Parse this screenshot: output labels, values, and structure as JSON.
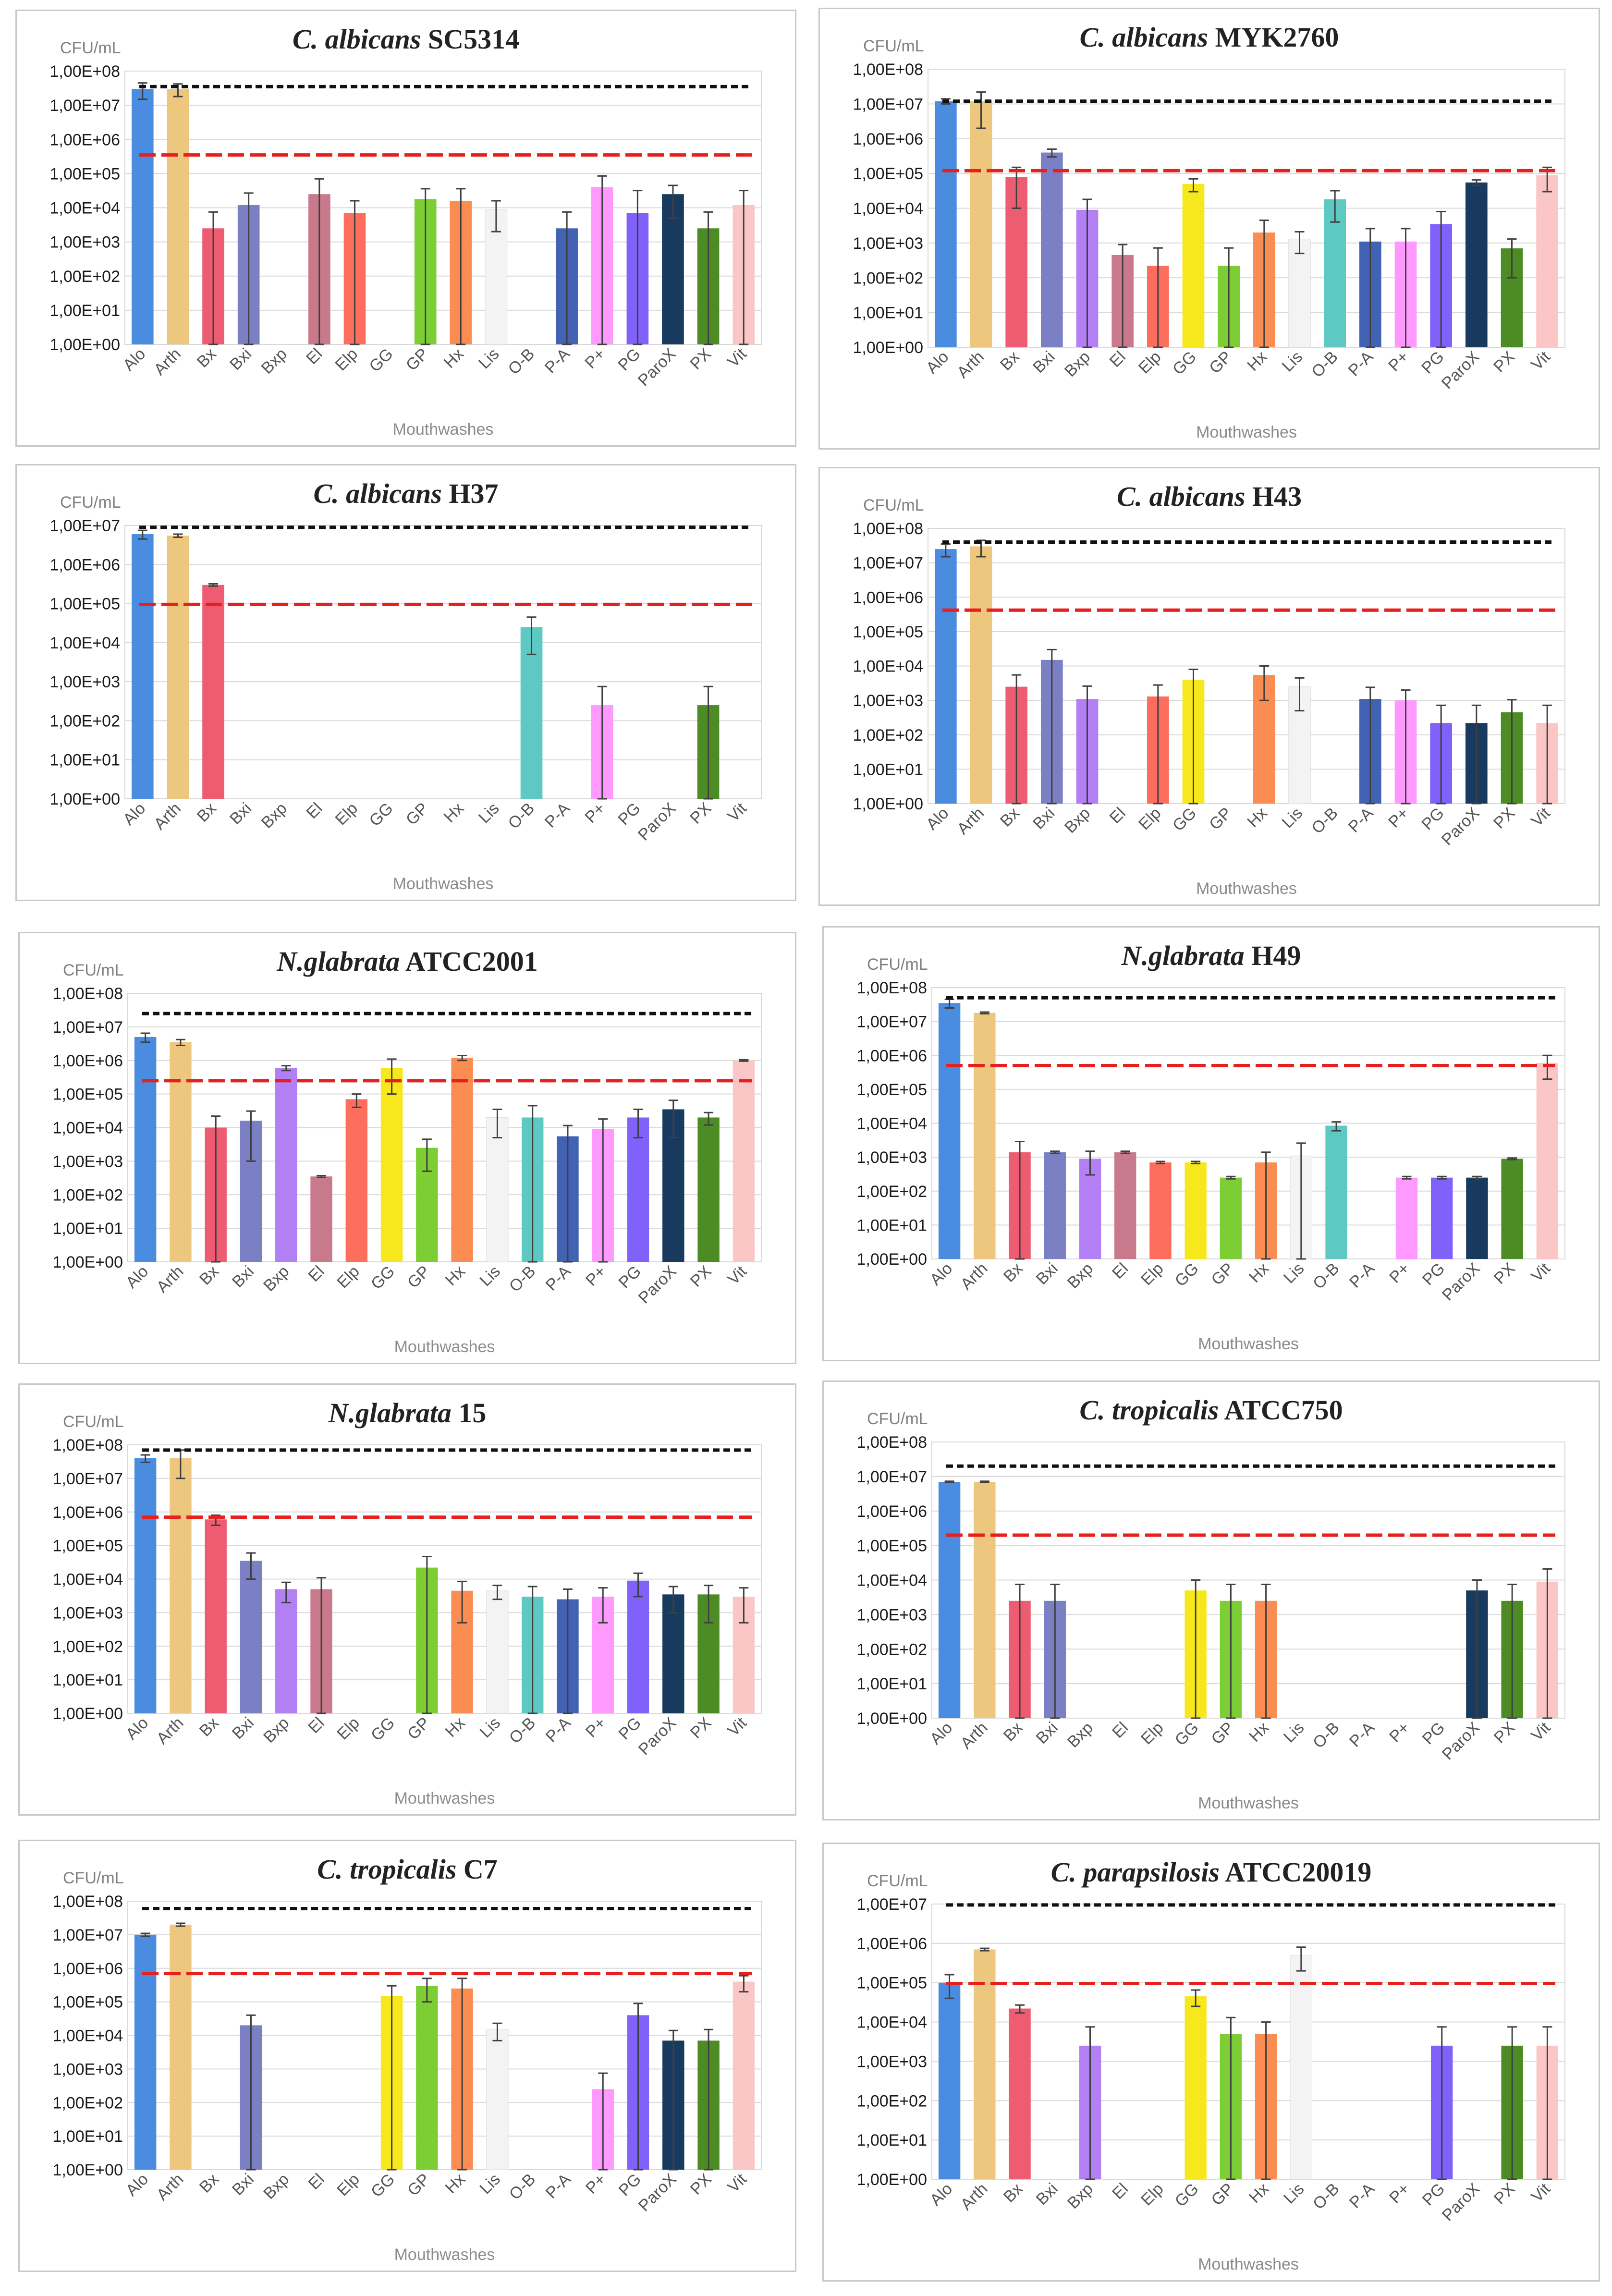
{
  "colors": [
    "#4a8de0",
    "#eec77e",
    "#ee5c72",
    "#7b7fc4",
    "#b27ff5",
    "#c87a8c",
    "#fd6e5c",
    "#f7e71d",
    "#7dce34",
    "#fc8d52",
    "#f3f3f3",
    "#5ec8c3",
    "#4263b4",
    "#fe99ff",
    "#8062fb",
    "#173a5e",
    "#4d8c24",
    "#fbc6c6"
  ],
  "chart_data": [
    {
      "title_italic": "C. albicans",
      "title_rest": "SC5314",
      "type": "bar",
      "ylabel": "CFU/mL",
      "xlabel": "Mouthwashes",
      "ylim": [
        1,
        100000000
      ],
      "yticks": [
        "1,00E+00",
        "1,00E+01",
        "1,00E+02",
        "1,00E+03",
        "1,00E+04",
        "1,00E+05",
        "1,00E+06",
        "1,00E+07",
        "1,00E+08"
      ],
      "categories": [
        "Alo",
        "Arth",
        "Bx",
        "Bxi",
        "Bxp",
        "El",
        "Elp",
        "GG",
        "GP",
        "Hx",
        "Lis",
        "O-B",
        "P-A",
        "P+",
        "PG",
        "ParoX",
        "PX",
        "Vit"
      ],
      "values": [
        30000000,
        30000000,
        2500,
        12000,
        null,
        25000,
        7000,
        null,
        18000,
        16000,
        9000,
        null,
        2500,
        40000,
        7000,
        25000,
        2500,
        12000
      ],
      "errors": [
        15000000,
        12000000,
        5000,
        15000,
        null,
        45000,
        9000,
        null,
        18000,
        20000,
        7000,
        null,
        5000,
        45000,
        25000,
        20000,
        5000,
        20000
      ],
      "ref_black": 35000000,
      "ref_red": 350000
    },
    {
      "title_italic": "C. albicans",
      "title_rest": "MYK2760",
      "type": "bar",
      "ylabel": "CFU/mL",
      "xlabel": "Mouthwashes",
      "ylim": [
        1,
        100000000
      ],
      "yticks": [
        "1,00E+00",
        "1,00E+01",
        "1,00E+02",
        "1,00E+03",
        "1,00E+04",
        "1,00E+05",
        "1,00E+06",
        "1,00E+07",
        "1,00E+08"
      ],
      "categories": [
        "Alo",
        "Arth",
        "Bx",
        "Bxi",
        "Bxp",
        "El",
        "Elp",
        "GG",
        "GP",
        "Hx",
        "Lis",
        "O-B",
        "P-A",
        "P+",
        "PG",
        "ParoX",
        "PX",
        "Vit"
      ],
      "values": [
        12000000,
        12000000,
        80000,
        400000,
        9000,
        450,
        220,
        50000,
        220,
        2000,
        1300,
        18000,
        1100,
        1100,
        3500,
        55000,
        700,
        90000
      ],
      "errors": [
        2000000,
        10000000,
        70000,
        100000,
        9000,
        450,
        500,
        20000,
        500,
        2500,
        800,
        14000,
        1500,
        1500,
        4500,
        10000,
        600,
        60000
      ],
      "ref_black": 12000000,
      "ref_red": 120000
    },
    {
      "title_italic": "C. albicans",
      "title_rest": "H37",
      "type": "bar",
      "ylabel": "CFU/mL",
      "xlabel": "Mouthwashes",
      "ylim": [
        1,
        10000000
      ],
      "yticks": [
        "1,00E+00",
        "1,00E+01",
        "1,00E+02",
        "1,00E+03",
        "1,00E+04",
        "1,00E+05",
        "1,00E+06",
        "1,00E+07"
      ],
      "categories": [
        "Alo",
        "Arth",
        "Bx",
        "Bxi",
        "Bxp",
        "El",
        "Elp",
        "GG",
        "GP",
        "Hx",
        "Lis",
        "O-B",
        "P-A",
        "P+",
        "PG",
        "ParoX",
        "PX",
        "Vit"
      ],
      "values": [
        6000000,
        5500000,
        300000,
        null,
        null,
        null,
        null,
        null,
        null,
        null,
        null,
        25000,
        null,
        250,
        null,
        null,
        250,
        null
      ],
      "errors": [
        1500000,
        500000,
        20000,
        null,
        null,
        null,
        null,
        null,
        null,
        null,
        null,
        20000,
        null,
        500,
        null,
        null,
        500,
        null
      ],
      "ref_black": 9000000,
      "ref_red": 95000
    },
    {
      "title_italic": "C. albicans",
      "title_rest": "H43",
      "type": "bar",
      "ylabel": "CFU/mL",
      "xlabel": "Mouthwashes",
      "ylim": [
        1,
        100000000
      ],
      "yticks": [
        "1,00E+00",
        "1,00E+01",
        "1,00E+02",
        "1,00E+03",
        "1,00E+04",
        "1,00E+05",
        "1,00E+06",
        "1,00E+07",
        "1,00E+08"
      ],
      "categories": [
        "Alo",
        "Arth",
        "Bx",
        "Bxi",
        "Bxp",
        "El",
        "Elp",
        "GG",
        "GP",
        "Hx",
        "Lis",
        "O-B",
        "P-A",
        "P+",
        "PG",
        "ParoX",
        "PX",
        "Vit"
      ],
      "values": [
        25000000,
        30000000,
        2500,
        15000,
        1100,
        null,
        1300,
        4000,
        null,
        5500,
        2500,
        null,
        1100,
        1000,
        220,
        220,
        450,
        220
      ],
      "errors": [
        10000000,
        15000000,
        3000,
        15000,
        1500,
        null,
        1500,
        4000,
        null,
        4500,
        2000,
        null,
        1300,
        1000,
        500,
        500,
        600,
        500
      ],
      "ref_black": 40000000,
      "ref_red": 420000
    },
    {
      "title_italic": "N.glabrata",
      "title_rest": "ATCC2001",
      "type": "bar",
      "ylabel": "CFU/mL",
      "xlabel": "Mouthwashes",
      "ylim": [
        1,
        100000000
      ],
      "yticks": [
        "1,00E+00",
        "1,00E+01",
        "1,00E+02",
        "1,00E+03",
        "1,00E+04",
        "1,00E+05",
        "1,00E+06",
        "1,00E+07",
        "1,00E+08"
      ],
      "categories": [
        "Alo",
        "Arth",
        "Bx",
        "Bxi",
        "Bxp",
        "El",
        "Elp",
        "GG",
        "GP",
        "Hx",
        "Lis",
        "O-B",
        "P-A",
        "P+",
        "PG",
        "ParoX",
        "PX",
        "Vit"
      ],
      "values": [
        5000000,
        3500000,
        10000,
        16000,
        600000,
        350,
        70000,
        600000,
        2500,
        1200000,
        20000,
        20000,
        5500,
        9000,
        20000,
        35000,
        20000,
        1000000
      ],
      "errors": [
        1500000,
        700000,
        12000,
        15000,
        100000,
        20,
        30000,
        500000,
        2000,
        200000,
        15000,
        25000,
        6000,
        9000,
        15000,
        30000,
        8000,
        50000
      ],
      "ref_black": 25000000,
      "ref_red": 250000
    },
    {
      "title_italic": "N.glabrata",
      "title_rest": "H49",
      "type": "bar",
      "ylabel": "CFU/mL",
      "xlabel": "Mouthwashes",
      "ylim": [
        1,
        100000000
      ],
      "yticks": [
        "1,00E+00",
        "1,00E+01",
        "1,00E+02",
        "1,00E+03",
        "1,00E+04",
        "1,00E+05",
        "1,00E+06",
        "1,00E+07",
        "1,00E+08"
      ],
      "categories": [
        "Alo",
        "Arth",
        "Bx",
        "Bxi",
        "Bxp",
        "El",
        "Elp",
        "GG",
        "GP",
        "Hx",
        "Lis",
        "O-B",
        "P-A",
        "P+",
        "PG",
        "ParoX",
        "PX",
        "Vit"
      ],
      "values": [
        35000000,
        18000000,
        1400,
        1400,
        900,
        1400,
        700,
        700,
        250,
        700,
        1100,
        8500,
        null,
        250,
        250,
        250,
        900,
        600000
      ],
      "errors": [
        10000000,
        1000000,
        1500,
        100,
        600,
        100,
        50,
        50,
        20,
        700,
        1500,
        2500,
        null,
        20,
        20,
        20,
        50,
        400000
      ],
      "ref_black": 50000000,
      "ref_red": 500000
    },
    {
      "title_italic": "N.glabrata",
      "title_rest": "15",
      "type": "bar",
      "ylabel": "CFU/mL",
      "xlabel": "Mouthwashes",
      "ylim": [
        1,
        100000000
      ],
      "yticks": [
        "1,00E+00",
        "1,00E+01",
        "1,00E+02",
        "1,00E+03",
        "1,00E+04",
        "1,00E+05",
        "1,00E+06",
        "1,00E+07",
        "1,00E+08"
      ],
      "categories": [
        "Alo",
        "Arth",
        "Bx",
        "Bxi",
        "Bxp",
        "El",
        "Elp",
        "GG",
        "GP",
        "Hx",
        "Lis",
        "O-B",
        "P-A",
        "P+",
        "PG",
        "ParoX",
        "PX",
        "Vit"
      ],
      "values": [
        40000000,
        40000000,
        600000,
        35000,
        5000,
        5000,
        null,
        null,
        22000,
        4500,
        4500,
        3000,
        2500,
        3000,
        9000,
        3500,
        3500,
        3000
      ],
      "errors": [
        10000000,
        30000000,
        200000,
        25000,
        3000,
        6000,
        null,
        null,
        25000,
        4000,
        2000,
        3000,
        2500,
        2500,
        6000,
        2500,
        3000,
        2500
      ],
      "ref_black": 70000000,
      "ref_red": 700000
    },
    {
      "title_italic": "C. tropicalis",
      "title_rest": "ATCC750",
      "type": "bar",
      "ylabel": "CFU/mL",
      "xlabel": "Mouthwashes",
      "ylim": [
        1,
        100000000
      ],
      "yticks": [
        "1,00E+00",
        "1,00E+01",
        "1,00E+02",
        "1,00E+03",
        "1,00E+04",
        "1,00E+05",
        "1,00E+06",
        "1,00E+07",
        "1,00E+08"
      ],
      "categories": [
        "Alo",
        "Arth",
        "Bx",
        "Bxi",
        "Bxp",
        "El",
        "Elp",
        "GG",
        "GP",
        "Hx",
        "Lis",
        "O-B",
        "P-A",
        "P+",
        "PG",
        "ParoX",
        "PX",
        "Vit"
      ],
      "values": [
        7000000,
        7000000,
        2500,
        2500,
        null,
        null,
        null,
        5000,
        2500,
        2500,
        null,
        null,
        null,
        null,
        null,
        5000,
        2500,
        9000
      ],
      "errors": [
        300000,
        300000,
        5000,
        5000,
        null,
        null,
        null,
        5000,
        5000,
        5000,
        null,
        null,
        null,
        null,
        null,
        5000,
        5000,
        12000
      ],
      "ref_black": 20000000,
      "ref_red": 200000
    },
    {
      "title_italic": "C. tropicalis",
      "title_rest": "C7",
      "type": "bar",
      "ylabel": "CFU/mL",
      "xlabel": "Mouthwashes",
      "ylim": [
        1,
        100000000
      ],
      "yticks": [
        "1,00E+00",
        "1,00E+01",
        "1,00E+02",
        "1,00E+03",
        "1,00E+04",
        "1,00E+05",
        "1,00E+06",
        "1,00E+07",
        "1,00E+08"
      ],
      "categories": [
        "Alo",
        "Arth",
        "Bx",
        "Bxi",
        "Bxp",
        "El",
        "Elp",
        "GG",
        "GP",
        "Hx",
        "Lis",
        "O-B",
        "P-A",
        "P+",
        "PG",
        "ParoX",
        "PX",
        "Vit"
      ],
      "values": [
        10000000,
        20000000,
        null,
        20000,
        null,
        null,
        null,
        150000,
        300000,
        250000,
        15000,
        null,
        null,
        250,
        40000,
        7000,
        7000,
        400000
      ],
      "errors": [
        1000000,
        2000000,
        null,
        20000,
        null,
        null,
        null,
        150000,
        200000,
        250000,
        8000,
        null,
        null,
        500,
        50000,
        7000,
        8000,
        200000
      ],
      "ref_black": 60000000,
      "ref_red": 700000
    },
    {
      "title_italic": "C. parapsilosis",
      "title_rest": "ATCC20019",
      "type": "bar",
      "ylabel": "CFU/mL",
      "xlabel": "Mouthwashes",
      "ylim": [
        1,
        10000000
      ],
      "yticks": [
        "1,00E+00",
        "1,00E+01",
        "1,00E+02",
        "1,00E+03",
        "1,00E+04",
        "1,00E+05",
        "1,00E+06",
        "1,00E+07"
      ],
      "categories": [
        "Alo",
        "Arth",
        "Bx",
        "Bxi",
        "Bxp",
        "El",
        "Elp",
        "GG",
        "GP",
        "Hx",
        "Lis",
        "O-B",
        "P-A",
        "P+",
        "PG",
        "ParoX",
        "PX",
        "Vit"
      ],
      "values": [
        100000,
        700000,
        22000,
        null,
        2500,
        null,
        null,
        45000,
        5000,
        5000,
        500000,
        null,
        null,
        null,
        2500,
        null,
        2500,
        2500
      ],
      "errors": [
        60000,
        50000,
        5000,
        null,
        5000,
        null,
        null,
        20000,
        8000,
        5000,
        300000,
        null,
        null,
        null,
        5000,
        null,
        5000,
        5000
      ],
      "ref_black": 9500000,
      "ref_red": 95000
    }
  ]
}
